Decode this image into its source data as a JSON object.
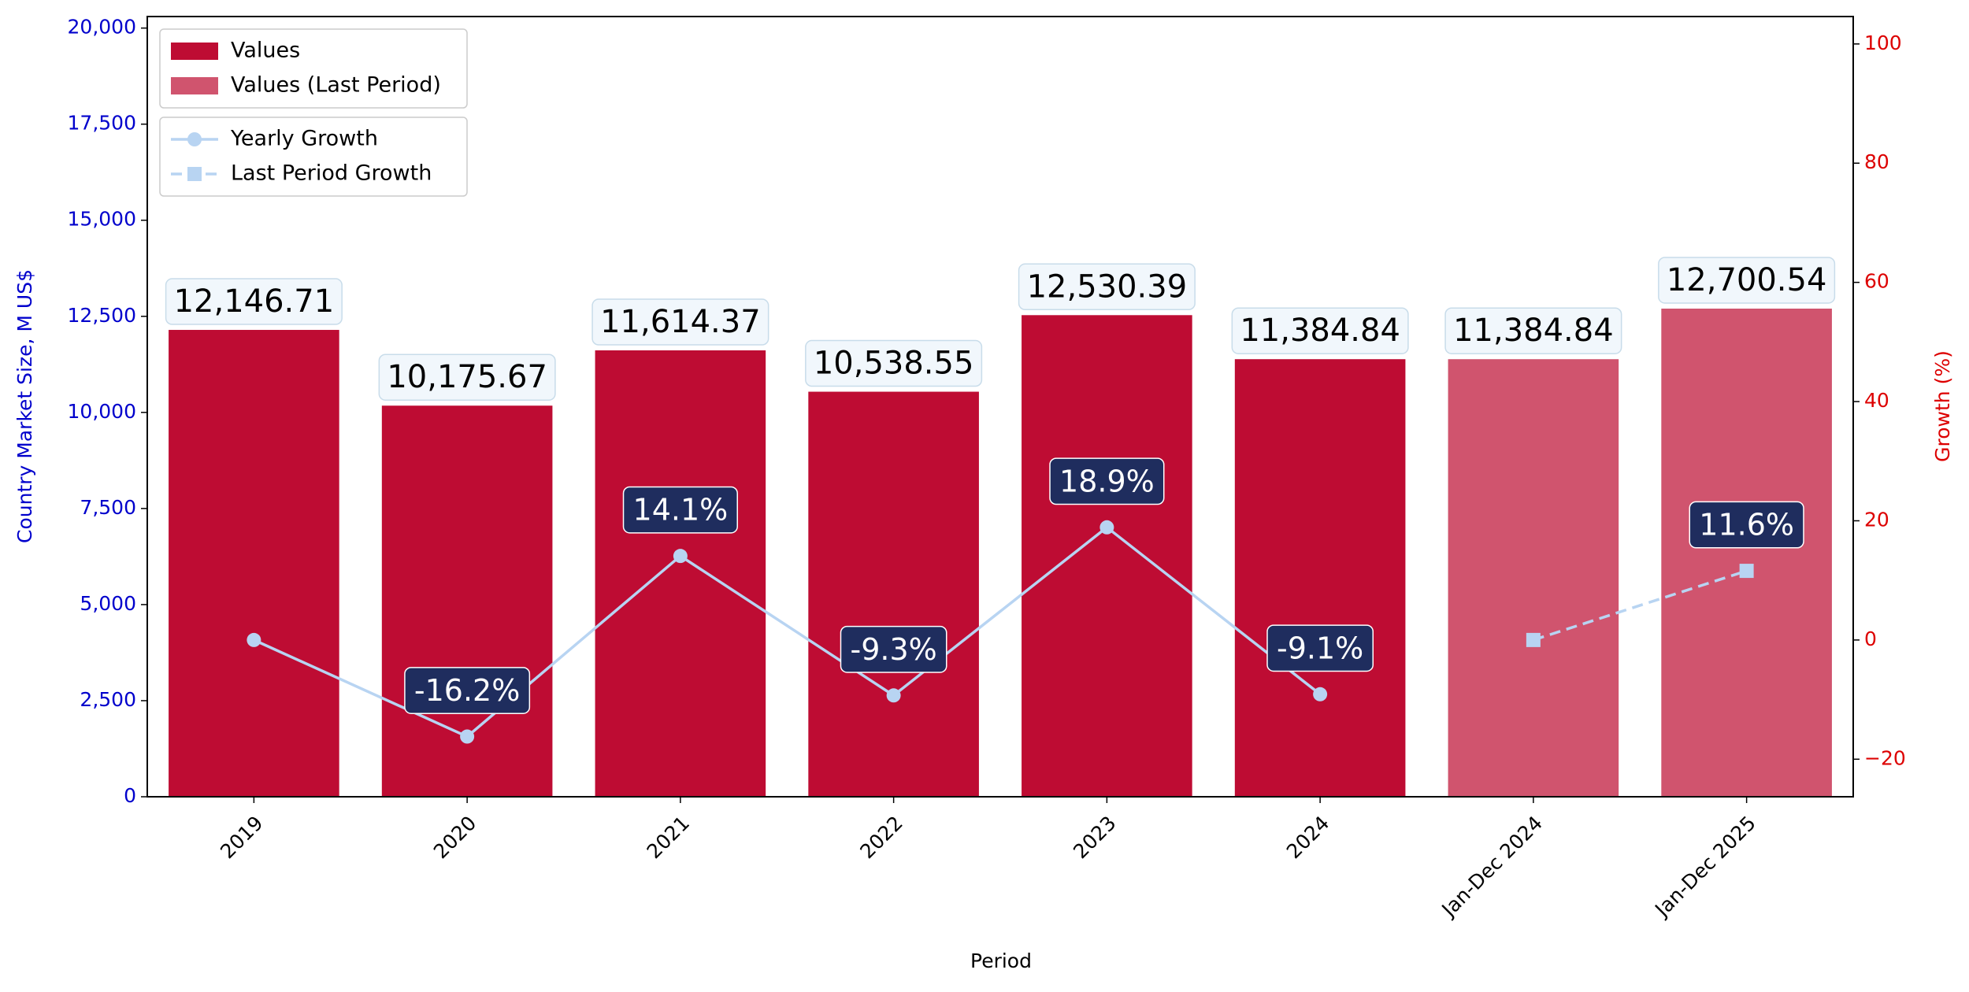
{
  "chart_data": {
    "type": "bar",
    "xlabel": "Period",
    "ylabel": "Country Market Size, M US$",
    "y2label": "Growth (%)",
    "categories": [
      "2019",
      "2020",
      "2021",
      "2022",
      "2023",
      "2024",
      "Jan-Dec 2024",
      "Jan-Dec 2025"
    ],
    "series": [
      {
        "name": "Values",
        "type": "bar",
        "color": "#be0c33",
        "values": [
          12146.71,
          10175.67,
          11614.37,
          10538.55,
          12530.39,
          11384.84,
          null,
          null
        ],
        "value_labels": [
          "12,146.71",
          "10,175.67",
          "11,614.37",
          "10,538.55",
          "12,530.39",
          "11,384.84",
          null,
          null
        ]
      },
      {
        "name": "Values (Last Period)",
        "type": "bar",
        "color": "#d0546e",
        "values": [
          null,
          null,
          null,
          null,
          null,
          null,
          11384.84,
          12700.54
        ],
        "value_labels": [
          null,
          null,
          null,
          null,
          null,
          null,
          "11,384.84",
          "12,700.54"
        ]
      },
      {
        "name": "Yearly Growth",
        "type": "line",
        "axis": "y2",
        "color": "#b8d4f2",
        "marker": "circle",
        "linestyle": "solid",
        "values": [
          0,
          -16.2,
          14.1,
          -9.3,
          18.9,
          -9.1,
          null,
          null
        ],
        "value_labels": [
          null,
          "-16.2%",
          "14.1%",
          "-9.3%",
          "18.9%",
          "-9.1%",
          null,
          null
        ]
      },
      {
        "name": "Last Period Growth",
        "type": "line",
        "axis": "y2",
        "color": "#b8d4f2",
        "marker": "square",
        "linestyle": "dashed",
        "values": [
          null,
          null,
          null,
          null,
          null,
          null,
          0,
          11.6
        ],
        "value_labels": [
          null,
          null,
          null,
          null,
          null,
          null,
          null,
          "11.6%"
        ]
      }
    ],
    "ylim": [
      0,
      20300
    ],
    "yticks": [
      0,
      {
        "value": 2500,
        "label": "2,500"
      },
      {
        "value": 5000,
        "label": "5,000"
      },
      {
        "value": 7500,
        "label": "7,500"
      },
      {
        "value": 10000,
        "label": "10,000"
      },
      {
        "value": 12500,
        "label": "12,500"
      },
      {
        "value": 15000,
        "label": "15,000"
      },
      {
        "value": 17500,
        "label": "17,500"
      },
      {
        "value": 20000,
        "label": "20,000"
      }
    ],
    "y2lim": [
      -26.3,
      104.6
    ],
    "y2ticks": [
      {
        "value": -20,
        "label": "−20"
      },
      0,
      20,
      40,
      60,
      80,
      100
    ],
    "ytick_color": "#0000cc",
    "y2tick_color": "#dd0000",
    "legend": "upper left"
  }
}
